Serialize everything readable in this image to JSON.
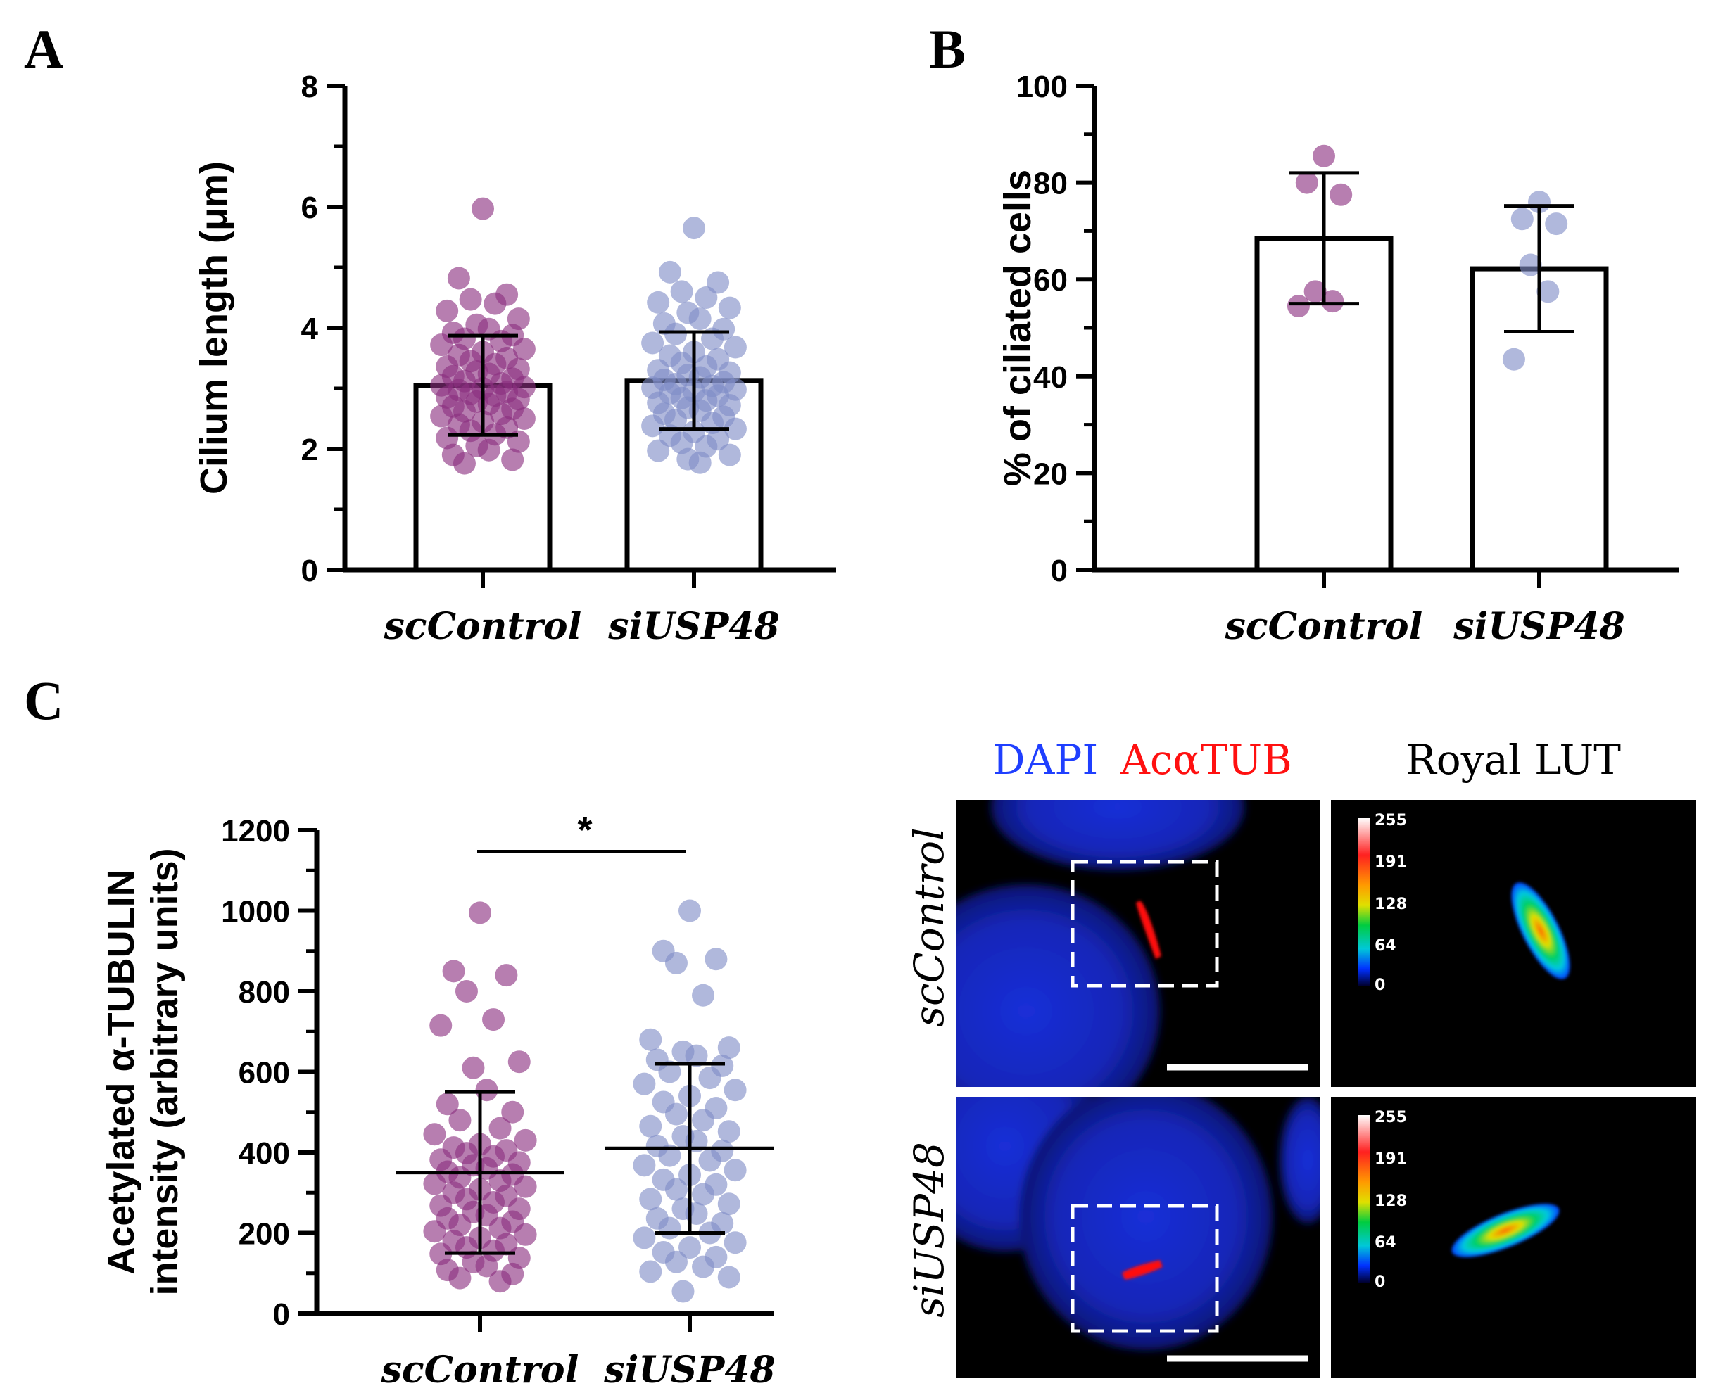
{
  "colors": {
    "sccontrol": "#8a2e80",
    "siusp48": "#7f8dc6",
    "dapi": "#1f3fff",
    "actub": "#ff1010"
  },
  "chart_data": [
    {
      "id": "A",
      "type": "bar",
      "panel_letter": "A",
      "ylabel": "Cilium length (μm)",
      "categories": [
        "scControl",
        "siUSP48"
      ],
      "ylim": [
        0,
        8
      ],
      "yticks": [
        0,
        2,
        4,
        6,
        8
      ],
      "means": [
        3.05,
        3.13
      ],
      "sd": [
        0.82,
        0.8
      ],
      "points": [
        [
          5.97,
          4.82,
          4.55,
          4.47,
          4.4,
          4.28,
          4.15,
          4.05,
          3.98,
          3.92,
          3.88,
          3.82,
          3.78,
          3.72,
          3.65,
          3.6,
          3.55,
          3.5,
          3.45,
          3.4,
          3.36,
          3.32,
          3.28,
          3.24,
          3.2,
          3.16,
          3.12,
          3.08,
          3.05,
          3.02,
          3.0,
          2.97,
          2.94,
          2.91,
          2.88,
          2.85,
          2.82,
          2.78,
          2.74,
          2.7,
          2.66,
          2.62,
          2.58,
          2.54,
          2.5,
          2.45,
          2.4,
          2.35,
          2.3,
          2.24,
          2.18,
          2.12,
          2.05,
          1.98,
          1.9,
          1.82,
          1.76
        ],
        [
          5.65,
          4.92,
          4.75,
          4.6,
          4.5,
          4.42,
          4.33,
          4.25,
          4.15,
          4.07,
          3.98,
          3.9,
          3.82,
          3.75,
          3.68,
          3.6,
          3.54,
          3.48,
          3.42,
          3.36,
          3.3,
          3.26,
          3.22,
          3.18,
          3.14,
          3.1,
          3.07,
          3.04,
          3.01,
          2.98,
          2.95,
          2.92,
          2.88,
          2.84,
          2.8,
          2.76,
          2.72,
          2.68,
          2.63,
          2.58,
          2.53,
          2.48,
          2.43,
          2.38,
          2.33,
          2.28,
          2.22,
          2.16,
          2.1,
          2.04,
          1.97,
          1.9,
          1.83,
          1.77
        ]
      ]
    },
    {
      "id": "B",
      "type": "bar",
      "panel_letter": "B",
      "ylabel": "% of ciliated cells",
      "categories": [
        "scControl",
        "siUSP48"
      ],
      "ylim": [
        0,
        100
      ],
      "yticks": [
        0,
        20,
        40,
        60,
        80,
        100
      ],
      "means": [
        68.5,
        62.2
      ],
      "sd": [
        13.5,
        13.0
      ],
      "points": [
        [
          85.5,
          80.0,
          77.5,
          57.5,
          55.5,
          54.5
        ],
        [
          76.0,
          72.5,
          71.5,
          63.0,
          57.5,
          43.5
        ]
      ]
    },
    {
      "id": "C",
      "type": "scatter",
      "panel_letter": "C",
      "ylabel_line1": "Acetylated α-TUBULIN",
      "ylabel_line2": "intensity (arbitrary units)",
      "categories": [
        "scControl",
        "siUSP48"
      ],
      "ylim": [
        0,
        1200
      ],
      "yticks": [
        0,
        200,
        400,
        600,
        800,
        1000,
        1200
      ],
      "means": [
        350,
        410
      ],
      "sd": [
        200,
        210
      ],
      "significance": "*",
      "points": [
        [
          995,
          850,
          840,
          800,
          730,
          715,
          625,
          610,
          555,
          520,
          500,
          480,
          460,
          445,
          430,
          420,
          412,
          405,
          398,
          390,
          382,
          375,
          368,
          360,
          352,
          345,
          338,
          330,
          322,
          315,
          308,
          300,
          292,
          284,
          276,
          268,
          260,
          252,
          244,
          236,
          228,
          220,
          212,
          204,
          196,
          188,
          180,
          172,
          164,
          156,
          148,
          138,
          128,
          118,
          108,
          98,
          88,
          80
        ],
        [
          1000,
          900,
          880,
          870,
          790,
          680,
          660,
          650,
          640,
          630,
          615,
          600,
          585,
          570,
          555,
          540,
          525,
          510,
          495,
          480,
          465,
          452,
          440,
          428,
          416,
          404,
          392,
          380,
          368,
          356,
          344,
          332,
          320,
          308,
          296,
          284,
          272,
          260,
          248,
          236,
          224,
          212,
          200,
          188,
          176,
          164,
          152,
          140,
          128,
          116,
          104,
          90,
          55
        ]
      ]
    }
  ],
  "micrographs": {
    "stain_dapi": "DAPI",
    "stain_actub": "AcαTUB",
    "lut_title": "Royal LUT",
    "rows": [
      "scControl",
      "siUSP48"
    ],
    "colorbar_labels": [
      "255",
      "191",
      "128",
      "64",
      "0"
    ]
  }
}
